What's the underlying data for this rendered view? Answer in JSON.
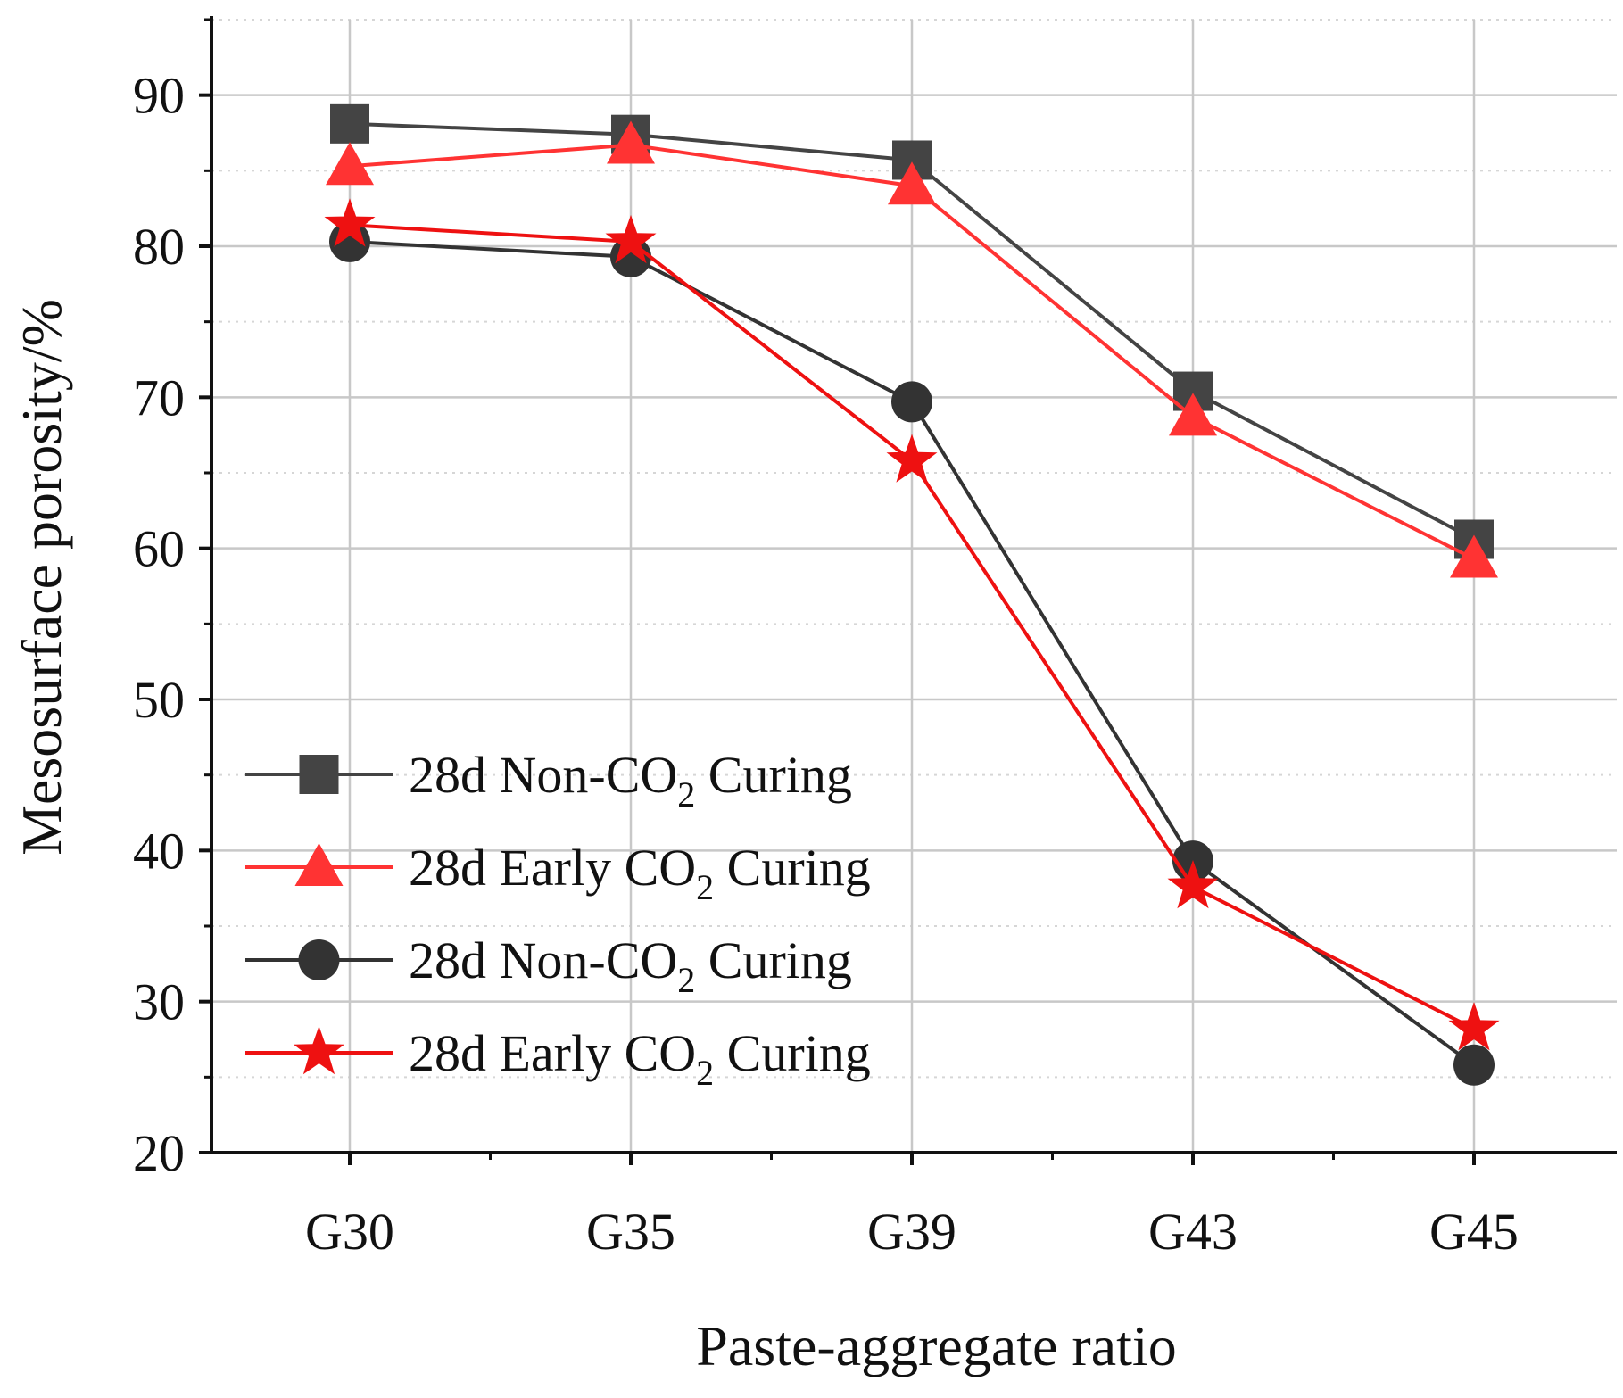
{
  "chart_data": {
    "type": "line",
    "title": "",
    "xlabel": "Paste-aggregate ratio",
    "ylabel": "Mesosurface porosity/%",
    "categories": [
      "G30",
      "G35",
      "G39",
      "G43",
      "G45"
    ],
    "ylim": [
      20,
      95
    ],
    "yticks": [
      20,
      30,
      40,
      50,
      60,
      70,
      80,
      90
    ],
    "grid": true,
    "legend_position": "bottom-left",
    "series": [
      {
        "name": "28d Non-CO2 Curing",
        "label_main": "28d Non-CO",
        "label_sub": "2",
        "label_tail": " Curing",
        "marker": "square",
        "color": "#444444",
        "values": [
          88.1,
          87.4,
          85.7,
          70.4,
          60.6
        ]
      },
      {
        "name": "28d Early CO2 Curing",
        "label_main": "28d Early CO",
        "label_sub": "2",
        "label_tail": " Curing",
        "marker": "triangle",
        "color": "#ff3333",
        "values": [
          85.3,
          86.7,
          84.0,
          68.7,
          59.3
        ]
      },
      {
        "name": "28d Non-CO2 Curing",
        "label_main": "28d Non-CO",
        "label_sub": "2",
        "label_tail": " Curing",
        "marker": "circle",
        "color": "#333333",
        "values": [
          80.3,
          79.3,
          69.7,
          39.3,
          25.8
        ]
      },
      {
        "name": "28d Early CO2 Curing",
        "label_main": "28d Early CO",
        "label_sub": "2",
        "label_tail": " Curing",
        "marker": "star",
        "color": "#ee1111",
        "values": [
          81.4,
          80.3,
          65.8,
          37.6,
          28.2
        ]
      }
    ]
  }
}
